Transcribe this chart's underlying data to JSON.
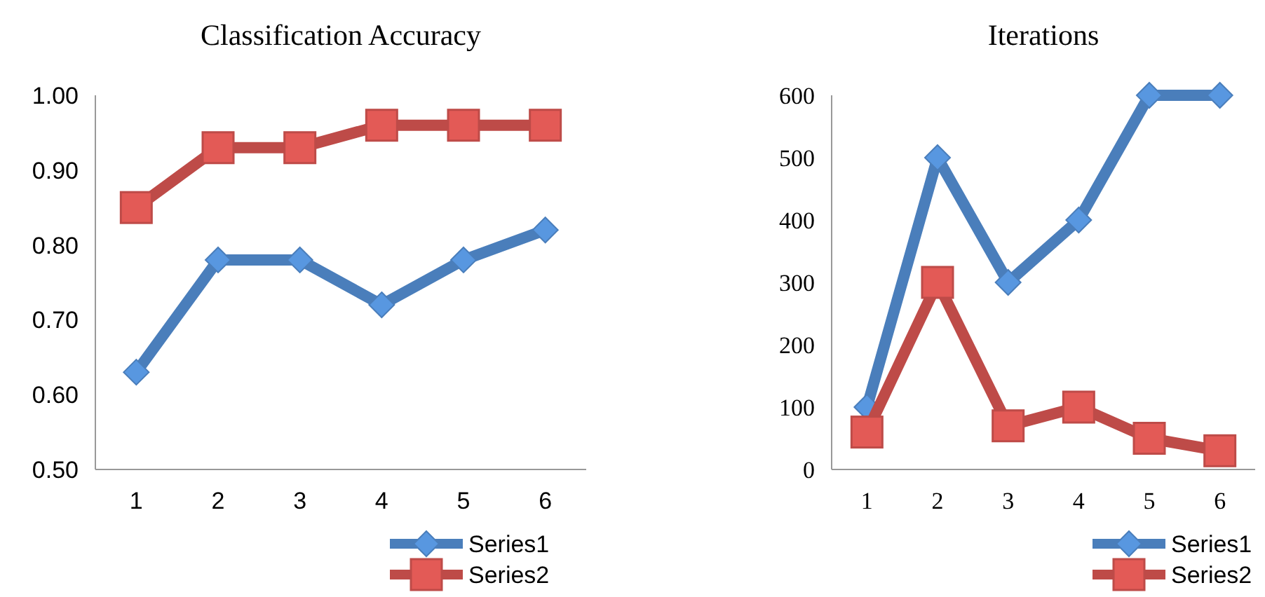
{
  "chart_data": [
    {
      "type": "line",
      "title": "Classification Accuracy",
      "categories": [
        "1",
        "2",
        "3",
        "4",
        "5",
        "6"
      ],
      "series": [
        {
          "name": "Series1",
          "color": "#4a7ebb",
          "marker": "diamond",
          "values": [
            0.63,
            0.78,
            0.78,
            0.72,
            0.78,
            0.82
          ]
        },
        {
          "name": "Series2",
          "color": "#be4b48",
          "marker": "square",
          "values": [
            0.85,
            0.93,
            0.93,
            0.96,
            0.96,
            0.96
          ]
        }
      ],
      "ylim": [
        0.5,
        1.0
      ],
      "yticks": [
        {
          "value": 0.5,
          "label": "0.50"
        },
        {
          "value": 0.6,
          "label": "0.60"
        },
        {
          "value": 0.7,
          "label": "0.70"
        },
        {
          "value": 0.8,
          "label": "0.80"
        },
        {
          "value": 0.9,
          "label": "0.90"
        },
        {
          "value": 1.0,
          "label": "1.00"
        }
      ],
      "grid": false,
      "legend": "bottom right"
    },
    {
      "type": "line",
      "title": "Iterations",
      "categories": [
        "1",
        "2",
        "3",
        "4",
        "5",
        "6"
      ],
      "series": [
        {
          "name": "Series1",
          "color": "#4a7ebb",
          "marker": "diamond",
          "values": [
            100,
            500,
            300,
            400,
            600,
            600
          ]
        },
        {
          "name": "Series2",
          "color": "#be4b48",
          "marker": "square",
          "values": [
            60,
            300,
            70,
            100,
            50,
            30
          ]
        }
      ],
      "ylim": [
        0,
        600
      ],
      "yticks": [
        0,
        100,
        200,
        300,
        400,
        500,
        600
      ],
      "grid": false,
      "legend": "bottom right"
    }
  ]
}
